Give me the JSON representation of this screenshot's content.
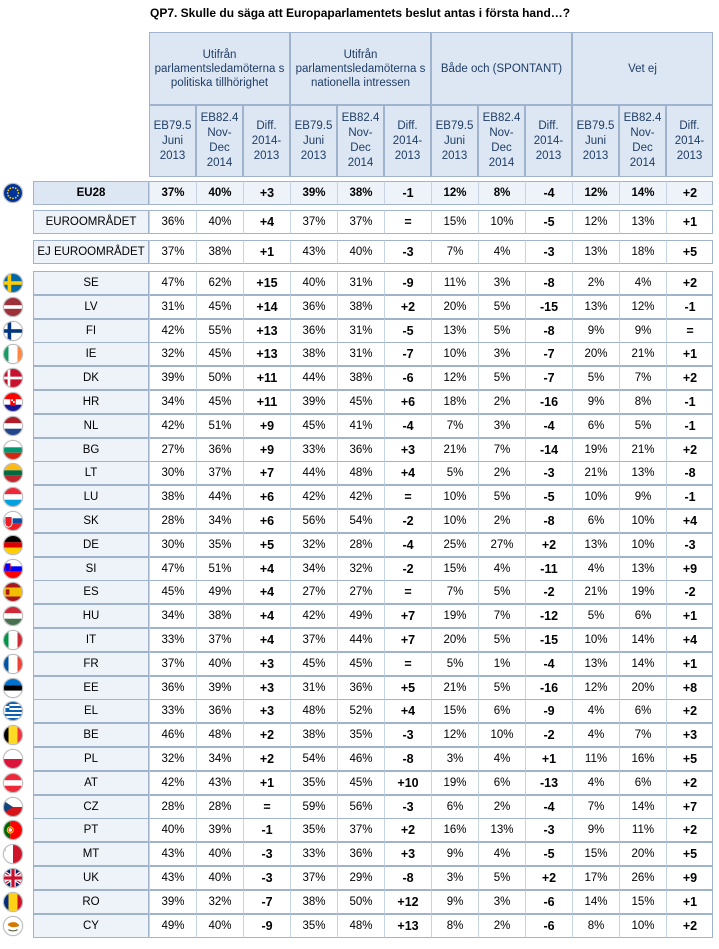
{
  "title": "QP7. Skulle du säga att Europaparlamentets beslut antas i första hand…?",
  "groups": [
    "Utifrån parlamentsledamöterna s politiska tillhörighet",
    "Utifrån parlamentsledamöterna s nationella intressen",
    "Både och (SPONTANT)",
    "Vet ej"
  ],
  "subheaders": [
    "EB79.5 Juni 2013",
    "EB82.4 Nov-Dec 2014",
    "Diff. 2014-2013"
  ],
  "rows": [
    {
      "label": "EU28",
      "flag": "eu",
      "kind": "eu",
      "v": [
        "37%",
        "40%",
        "+3",
        "39%",
        "38%",
        "-1",
        "12%",
        "8%",
        "-4",
        "12%",
        "14%",
        "+2"
      ]
    },
    {
      "label": "EUROOMRÅDET",
      "flag": "",
      "kind": "zone",
      "v": [
        "36%",
        "40%",
        "+4",
        "37%",
        "37%",
        "=",
        "15%",
        "10%",
        "-5",
        "12%",
        "13%",
        "+1"
      ]
    },
    {
      "label": "EJ EUROOMRÅDET",
      "flag": "",
      "kind": "zone",
      "v": [
        "37%",
        "38%",
        "+1",
        "43%",
        "40%",
        "-3",
        "7%",
        "4%",
        "-3",
        "13%",
        "18%",
        "+5"
      ]
    },
    {
      "label": "SE",
      "flag": "se",
      "kind": "c",
      "v": [
        "47%",
        "62%",
        "+15",
        "40%",
        "31%",
        "-9",
        "11%",
        "3%",
        "-8",
        "2%",
        "4%",
        "+2"
      ]
    },
    {
      "label": "LV",
      "flag": "lv",
      "kind": "c",
      "v": [
        "31%",
        "45%",
        "+14",
        "36%",
        "38%",
        "+2",
        "20%",
        "5%",
        "-15",
        "13%",
        "12%",
        "-1"
      ]
    },
    {
      "label": "FI",
      "flag": "fi",
      "kind": "c",
      "v": [
        "42%",
        "55%",
        "+13",
        "36%",
        "31%",
        "-5",
        "13%",
        "5%",
        "-8",
        "9%",
        "9%",
        "="
      ]
    },
    {
      "label": "IE",
      "flag": "ie",
      "kind": "c",
      "v": [
        "32%",
        "45%",
        "+13",
        "38%",
        "31%",
        "-7",
        "10%",
        "3%",
        "-7",
        "20%",
        "21%",
        "+1"
      ]
    },
    {
      "label": "DK",
      "flag": "dk",
      "kind": "c",
      "v": [
        "39%",
        "50%",
        "+11",
        "44%",
        "38%",
        "-6",
        "12%",
        "5%",
        "-7",
        "5%",
        "7%",
        "+2"
      ]
    },
    {
      "label": "HR",
      "flag": "hr",
      "kind": "c",
      "v": [
        "34%",
        "45%",
        "+11",
        "39%",
        "45%",
        "+6",
        "18%",
        "2%",
        "-16",
        "9%",
        "8%",
        "-1"
      ]
    },
    {
      "label": "NL",
      "flag": "nl",
      "kind": "c",
      "v": [
        "42%",
        "51%",
        "+9",
        "45%",
        "41%",
        "-4",
        "7%",
        "3%",
        "-4",
        "6%",
        "5%",
        "-1"
      ]
    },
    {
      "label": "BG",
      "flag": "bg",
      "kind": "c",
      "v": [
        "27%",
        "36%",
        "+9",
        "33%",
        "36%",
        "+3",
        "21%",
        "7%",
        "-14",
        "19%",
        "21%",
        "+2"
      ]
    },
    {
      "label": "LT",
      "flag": "lt",
      "kind": "c",
      "v": [
        "30%",
        "37%",
        "+7",
        "44%",
        "48%",
        "+4",
        "5%",
        "2%",
        "-3",
        "21%",
        "13%",
        "-8"
      ]
    },
    {
      "label": "LU",
      "flag": "lu",
      "kind": "c",
      "v": [
        "38%",
        "44%",
        "+6",
        "42%",
        "42%",
        "=",
        "10%",
        "5%",
        "-5",
        "10%",
        "9%",
        "-1"
      ]
    },
    {
      "label": "SK",
      "flag": "sk",
      "kind": "c",
      "v": [
        "28%",
        "34%",
        "+6",
        "56%",
        "54%",
        "-2",
        "10%",
        "2%",
        "-8",
        "6%",
        "10%",
        "+4"
      ]
    },
    {
      "label": "DE",
      "flag": "de",
      "kind": "c",
      "v": [
        "30%",
        "35%",
        "+5",
        "32%",
        "28%",
        "-4",
        "25%",
        "27%",
        "+2",
        "13%",
        "10%",
        "-3"
      ]
    },
    {
      "label": "SI",
      "flag": "si",
      "kind": "c",
      "v": [
        "47%",
        "51%",
        "+4",
        "34%",
        "32%",
        "-2",
        "15%",
        "4%",
        "-11",
        "4%",
        "13%",
        "+9"
      ]
    },
    {
      "label": "ES",
      "flag": "es",
      "kind": "c",
      "v": [
        "45%",
        "49%",
        "+4",
        "27%",
        "27%",
        "=",
        "7%",
        "5%",
        "-2",
        "21%",
        "19%",
        "-2"
      ]
    },
    {
      "label": "HU",
      "flag": "hu",
      "kind": "c",
      "v": [
        "34%",
        "38%",
        "+4",
        "42%",
        "49%",
        "+7",
        "19%",
        "7%",
        "-12",
        "5%",
        "6%",
        "+1"
      ]
    },
    {
      "label": "IT",
      "flag": "it",
      "kind": "c",
      "v": [
        "33%",
        "37%",
        "+4",
        "37%",
        "44%",
        "+7",
        "20%",
        "5%",
        "-15",
        "10%",
        "14%",
        "+4"
      ]
    },
    {
      "label": "FR",
      "flag": "fr",
      "kind": "c",
      "v": [
        "37%",
        "40%",
        "+3",
        "45%",
        "45%",
        "=",
        "5%",
        "1%",
        "-4",
        "13%",
        "14%",
        "+1"
      ]
    },
    {
      "label": "EE",
      "flag": "ee",
      "kind": "c",
      "v": [
        "36%",
        "39%",
        "+3",
        "31%",
        "36%",
        "+5",
        "21%",
        "5%",
        "-16",
        "12%",
        "20%",
        "+8"
      ]
    },
    {
      "label": "EL",
      "flag": "el",
      "kind": "c",
      "v": [
        "33%",
        "36%",
        "+3",
        "48%",
        "52%",
        "+4",
        "15%",
        "6%",
        "-9",
        "4%",
        "6%",
        "+2"
      ]
    },
    {
      "label": "BE",
      "flag": "be",
      "kind": "c",
      "v": [
        "46%",
        "48%",
        "+2",
        "38%",
        "35%",
        "-3",
        "12%",
        "10%",
        "-2",
        "4%",
        "7%",
        "+3"
      ]
    },
    {
      "label": "PL",
      "flag": "pl",
      "kind": "c",
      "v": [
        "32%",
        "34%",
        "+2",
        "54%",
        "46%",
        "-8",
        "3%",
        "4%",
        "+1",
        "11%",
        "16%",
        "+5"
      ]
    },
    {
      "label": "AT",
      "flag": "at",
      "kind": "c",
      "v": [
        "42%",
        "43%",
        "+1",
        "35%",
        "45%",
        "+10",
        "19%",
        "6%",
        "-13",
        "4%",
        "6%",
        "+2"
      ]
    },
    {
      "label": "CZ",
      "flag": "cz",
      "kind": "c",
      "v": [
        "28%",
        "28%",
        "=",
        "59%",
        "56%",
        "-3",
        "6%",
        "2%",
        "-4",
        "7%",
        "14%",
        "+7"
      ]
    },
    {
      "label": "PT",
      "flag": "pt",
      "kind": "c",
      "v": [
        "40%",
        "39%",
        "-1",
        "35%",
        "37%",
        "+2",
        "16%",
        "13%",
        "-3",
        "9%",
        "11%",
        "+2"
      ]
    },
    {
      "label": "MT",
      "flag": "mt",
      "kind": "c",
      "v": [
        "43%",
        "40%",
        "-3",
        "33%",
        "36%",
        "+3",
        "9%",
        "4%",
        "-5",
        "15%",
        "20%",
        "+5"
      ]
    },
    {
      "label": "UK",
      "flag": "uk",
      "kind": "c",
      "v": [
        "43%",
        "40%",
        "-3",
        "37%",
        "29%",
        "-8",
        "3%",
        "5%",
        "+2",
        "17%",
        "26%",
        "+9"
      ]
    },
    {
      "label": "RO",
      "flag": "ro",
      "kind": "c",
      "v": [
        "39%",
        "32%",
        "-7",
        "38%",
        "50%",
        "+12",
        "9%",
        "3%",
        "-6",
        "14%",
        "15%",
        "+1"
      ]
    },
    {
      "label": "CY",
      "flag": "cy",
      "kind": "c",
      "v": [
        "49%",
        "40%",
        "-9",
        "35%",
        "48%",
        "+13",
        "8%",
        "2%",
        "-6",
        "8%",
        "10%",
        "+2"
      ]
    }
  ]
}
